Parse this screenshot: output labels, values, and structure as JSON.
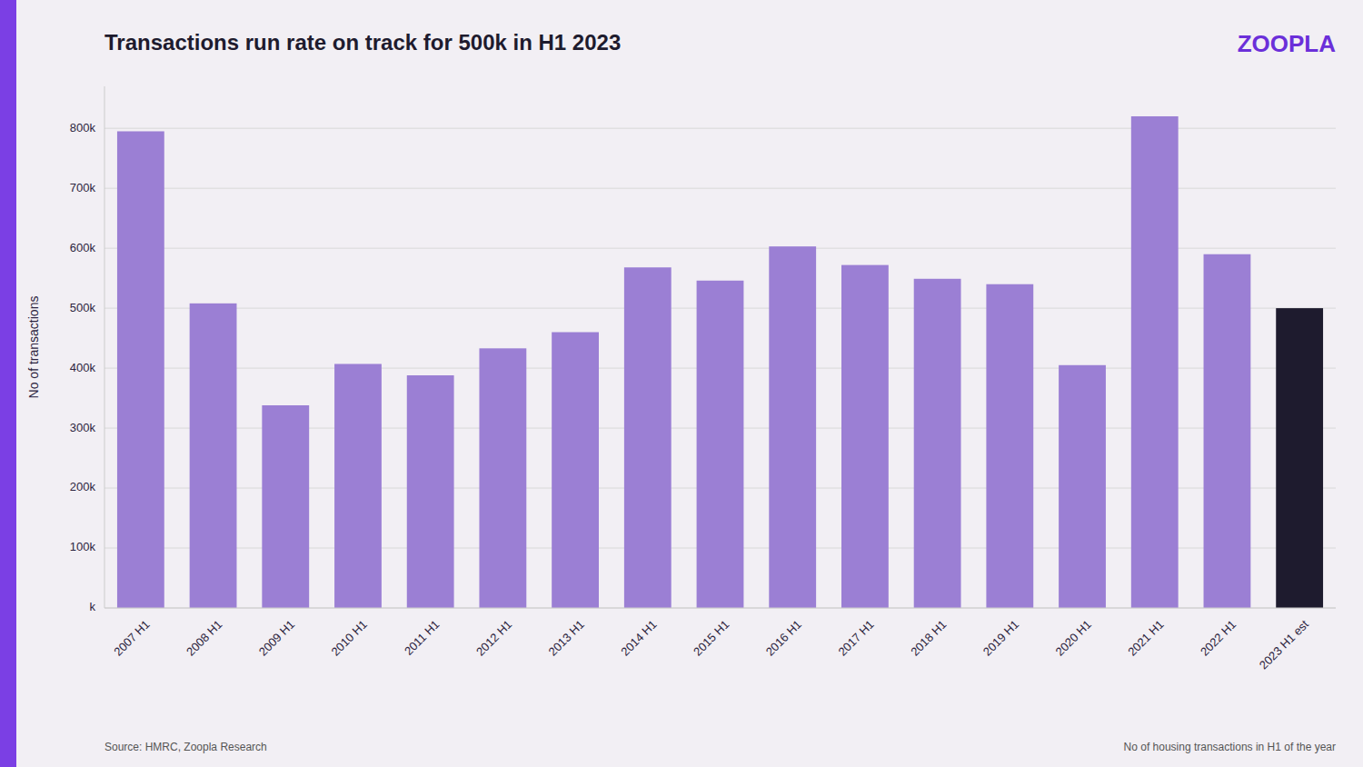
{
  "chart_data": {
    "type": "bar",
    "title": "Transactions run rate on track for 500k in H1 2023",
    "y_label": "No of transactions",
    "categories": [
      "2007 H1",
      "2008 H1",
      "2009 H1",
      "2010 H1",
      "2011 H1",
      "2012 H1",
      "2013 H1",
      "2014 H1",
      "2015 H1",
      "2016 H1",
      "2017 H1",
      "2018 H1",
      "2019 H1",
      "2020 H1",
      "2021 H1",
      "2022 H1",
      "2023 H1 est"
    ],
    "values": [
      795000,
      508000,
      338000,
      407000,
      388000,
      433000,
      460000,
      568000,
      546000,
      603000,
      572000,
      549000,
      540000,
      405000,
      820000,
      590000,
      500000
    ],
    "colors": [
      "#9b7fd4",
      "#9b7fd4",
      "#9b7fd4",
      "#9b7fd4",
      "#9b7fd4",
      "#9b7fd4",
      "#9b7fd4",
      "#9b7fd4",
      "#9b7fd4",
      "#9b7fd4",
      "#9b7fd4",
      "#9b7fd4",
      "#9b7fd4",
      "#9b7fd4",
      "#9b7fd4",
      "#9b7fd4",
      "#1e1b2e"
    ],
    "ylim": [
      0,
      870000
    ],
    "yticks": [
      {
        "value": 0,
        "label": "k"
      },
      {
        "value": 100000,
        "label": "100k"
      },
      {
        "value": 200000,
        "label": "200k"
      },
      {
        "value": 300000,
        "label": "300k"
      },
      {
        "value": 400000,
        "label": "400k"
      },
      {
        "value": 500000,
        "label": "500k"
      },
      {
        "value": 600000,
        "label": "600k"
      },
      {
        "value": 700000,
        "label": "700k"
      },
      {
        "value": 800000,
        "label": "800k"
      }
    ],
    "grid": true,
    "annotations": [
      "ZOOPLA",
      "Source: HMRC, Zoopla Research",
      "No of housing transactions in H1 of the year"
    ]
  }
}
